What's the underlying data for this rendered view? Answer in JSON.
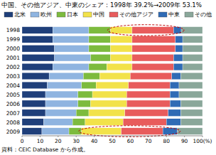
{
  "chart_data": {
    "type": "bar",
    "orientation": "horizontal",
    "stacked": true,
    "grid": false,
    "legend": "top",
    "title": "中国、その他アジア、中東のシェア：1998年 39.2%→2009年 53.1%",
    "source": "資料：CEIC Database から作成。",
    "categories": [
      "1998",
      "1999",
      "2000",
      "2001",
      "2002",
      "2003",
      "2004",
      "2005",
      "2006",
      "2007",
      "2008",
      "2009"
    ],
    "xlim": [
      0,
      100
    ],
    "xticks": [
      0,
      10,
      20,
      30,
      40,
      50,
      60,
      70,
      80,
      90,
      {
        "value": 100,
        "label": "100(%)"
      }
    ],
    "series": [
      {
        "name": "北米",
        "color": "#1f3f7a",
        "values": [
          17,
          17,
          18,
          18,
          17,
          15,
          14,
          13,
          13,
          13,
          12,
          11
        ]
      },
      {
        "name": "欧州",
        "color": "#8fb4e0",
        "values": [
          20,
          20,
          19,
          20,
          20,
          19,
          19,
          18,
          18,
          17,
          16,
          15
        ]
      },
      {
        "name": "日本",
        "color": "#7dbb3e",
        "values": [
          12,
          12,
          12,
          11,
          10,
          9,
          8,
          8,
          7,
          7,
          7,
          7
        ]
      },
      {
        "name": "中国",
        "color": "#f2e24a",
        "values": [
          12,
          12,
          12,
          12,
          14,
          17,
          18,
          19,
          20,
          20,
          21,
          22
        ]
      },
      {
        "name": "その他アジア",
        "color": "#e85c5c",
        "values": [
          23,
          24,
          24,
          23,
          23,
          23,
          23,
          24,
          24,
          24,
          24,
          23
        ]
      },
      {
        "name": "中東",
        "color": "#2f6bb5",
        "values": [
          4.2,
          4,
          4,
          5,
          5,
          5,
          5,
          5,
          6,
          7,
          8,
          8.1
        ]
      },
      {
        "name": "その他",
        "color": "#8aa79a",
        "values": [
          11.8,
          11,
          11,
          11,
          11,
          12,
          13,
          13,
          12,
          12,
          12,
          13.9
        ]
      }
    ]
  }
}
